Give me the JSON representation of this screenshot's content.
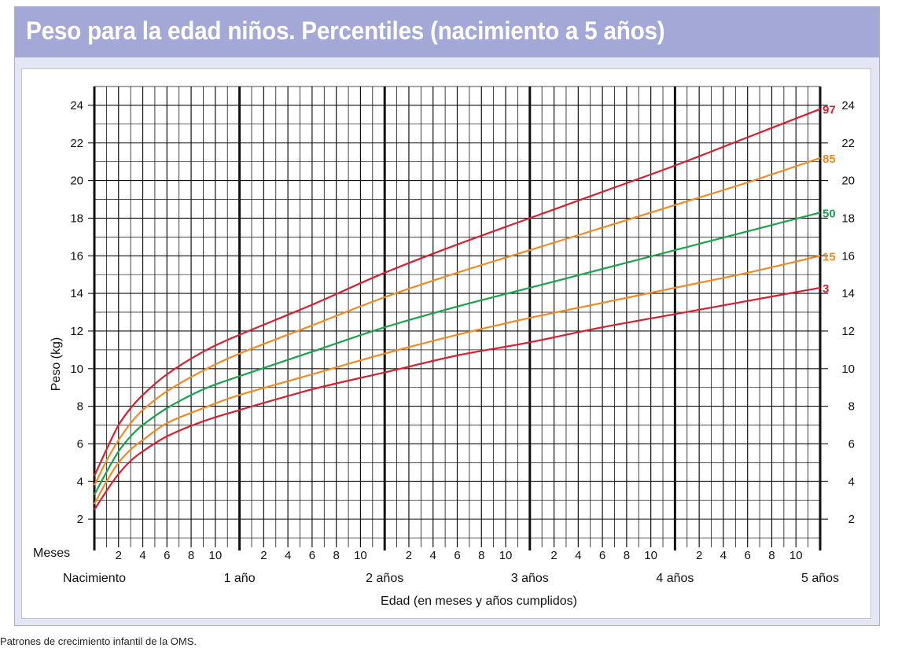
{
  "colors": {
    "title_bar": "#a4a8d6",
    "frame": "#e5e6f3",
    "grid": "#111111",
    "p3": "#d6202f",
    "p15": "#f08a25",
    "p50": "#1aa34a",
    "p85": "#f08a25",
    "p97": "#d6202f"
  },
  "footer": "Patrones de crecimiento infantil de la OMS.",
  "chart_data": {
    "type": "line",
    "title": "Peso para la edad niños. Percentiles (nacimiento a 5 años)",
    "xlabel": "Edad (en meses y años cumplidos)",
    "ylabel": "Peso (kg)",
    "x_unit": "months",
    "xlim": [
      0,
      60
    ],
    "ylim": [
      0.5,
      25
    ],
    "y_ticks": [
      2,
      4,
      6,
      8,
      10,
      12,
      14,
      16,
      18,
      20,
      22,
      24
    ],
    "month_row_label": "Meses",
    "month_ticks": [
      "2",
      "4",
      "6",
      "8",
      "10"
    ],
    "year_ticks": [
      {
        "month": 0,
        "label": "Nacimiento"
      },
      {
        "month": 12,
        "label": "1 año"
      },
      {
        "month": 24,
        "label": "2 años"
      },
      {
        "month": 36,
        "label": "3 años"
      },
      {
        "month": 48,
        "label": "4 años"
      },
      {
        "month": 60,
        "label": "5 años"
      }
    ],
    "grid": true,
    "x": [
      0,
      1,
      2,
      3,
      4,
      6,
      9,
      12,
      18,
      24,
      30,
      36,
      42,
      48,
      54,
      60
    ],
    "series": [
      {
        "name": "97",
        "color_key": "p97",
        "values": [
          4.3,
          5.7,
          7.0,
          7.9,
          8.6,
          9.7,
          10.9,
          11.8,
          13.4,
          15.1,
          16.6,
          18.0,
          19.4,
          20.8,
          22.3,
          23.8
        ]
      },
      {
        "name": "85",
        "color_key": "p85",
        "values": [
          3.8,
          5.1,
          6.2,
          7.1,
          7.8,
          8.8,
          9.9,
          10.8,
          12.3,
          13.8,
          15.1,
          16.3,
          17.5,
          18.7,
          19.9,
          21.2
        ]
      },
      {
        "name": "50",
        "color_key": "p50",
        "values": [
          3.3,
          4.5,
          5.6,
          6.4,
          7.0,
          7.9,
          8.9,
          9.6,
          10.9,
          12.2,
          13.3,
          14.3,
          15.3,
          16.3,
          17.3,
          18.3
        ]
      },
      {
        "name": "15",
        "color_key": "p15",
        "values": [
          2.8,
          4.0,
          5.0,
          5.7,
          6.2,
          7.1,
          7.9,
          8.6,
          9.7,
          10.8,
          11.8,
          12.7,
          13.5,
          14.3,
          15.1,
          16.0
        ]
      },
      {
        "name": "3",
        "color_key": "p3",
        "values": [
          2.5,
          3.5,
          4.4,
          5.1,
          5.6,
          6.4,
          7.2,
          7.8,
          8.9,
          9.8,
          10.7,
          11.4,
          12.2,
          12.9,
          13.6,
          14.3
        ]
      }
    ]
  }
}
